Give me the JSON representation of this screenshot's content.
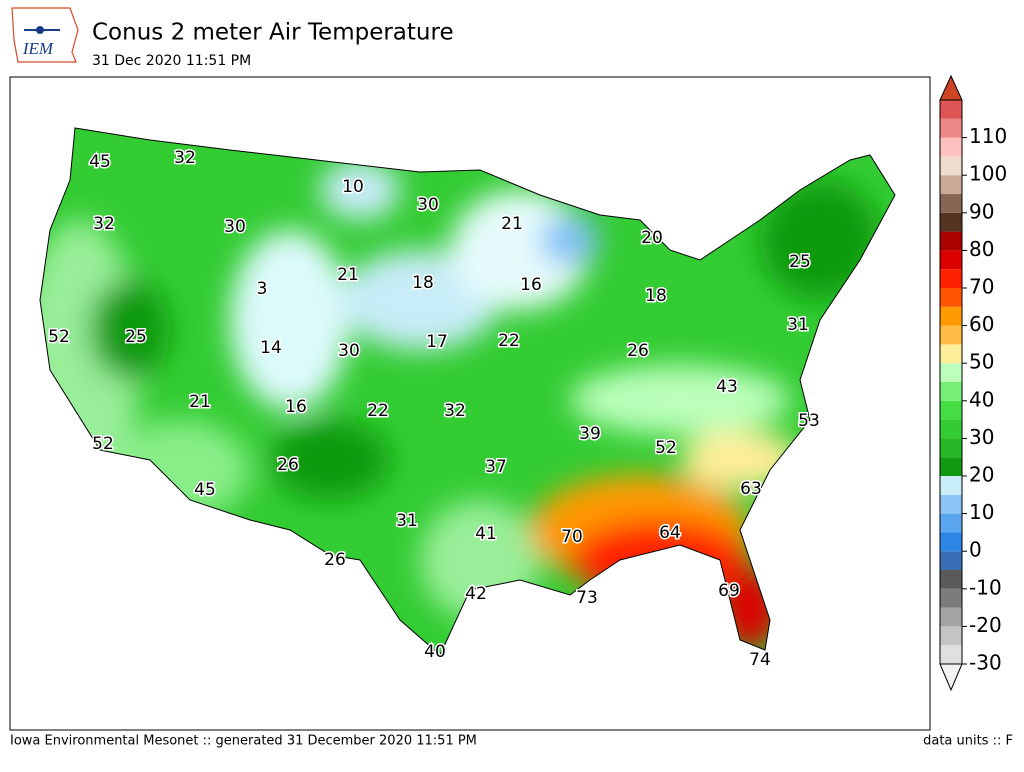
{
  "header": {
    "logo": "IEM",
    "title": "Conus 2 meter Air Temperature",
    "subtitle": "31 Dec 2020 11:51 PM"
  },
  "map": {
    "labels": [
      45,
      32,
      10,
      30,
      21,
      20,
      32,
      30,
      3,
      21,
      18,
      16,
      25,
      18,
      52,
      25,
      14,
      30,
      17,
      22,
      26,
      31,
      21,
      16,
      22,
      32,
      39,
      52,
      43,
      53,
      52,
      26,
      45,
      37,
      63,
      31,
      41,
      70,
      64,
      26,
      42,
      73,
      69,
      40,
      74
    ]
  },
  "colorbar": {
    "range": [
      -30,
      120
    ],
    "ticks": [
      -30,
      -20,
      -10,
      0,
      10,
      20,
      30,
      40,
      50,
      60,
      70,
      80,
      90,
      100,
      110
    ],
    "colors": [
      "#e0e0e0",
      "#c4c4c4",
      "#a4a4a4",
      "#7c7c7c",
      "#5a5a5a",
      "#3a6fb5",
      "#2b86e6",
      "#5aa7f0",
      "#8cc4f5",
      "#c8ecf8",
      "#109a10",
      "#26b826",
      "#33cc33",
      "#44dd44",
      "#77ee77",
      "#bbffbb",
      "#ffee99",
      "#ffbb44",
      "#ff9900",
      "#ff5500",
      "#ff2200",
      "#dd0000",
      "#aa0000",
      "#553322",
      "#886655",
      "#ccaa99",
      "#eeddcc",
      "#ffc0c0",
      "#ee8888",
      "#dd5555"
    ]
  },
  "footer": {
    "left": "Iowa Environmental Mesonet :: generated 31 December 2020 11:51 PM",
    "right": "data units :: F"
  }
}
